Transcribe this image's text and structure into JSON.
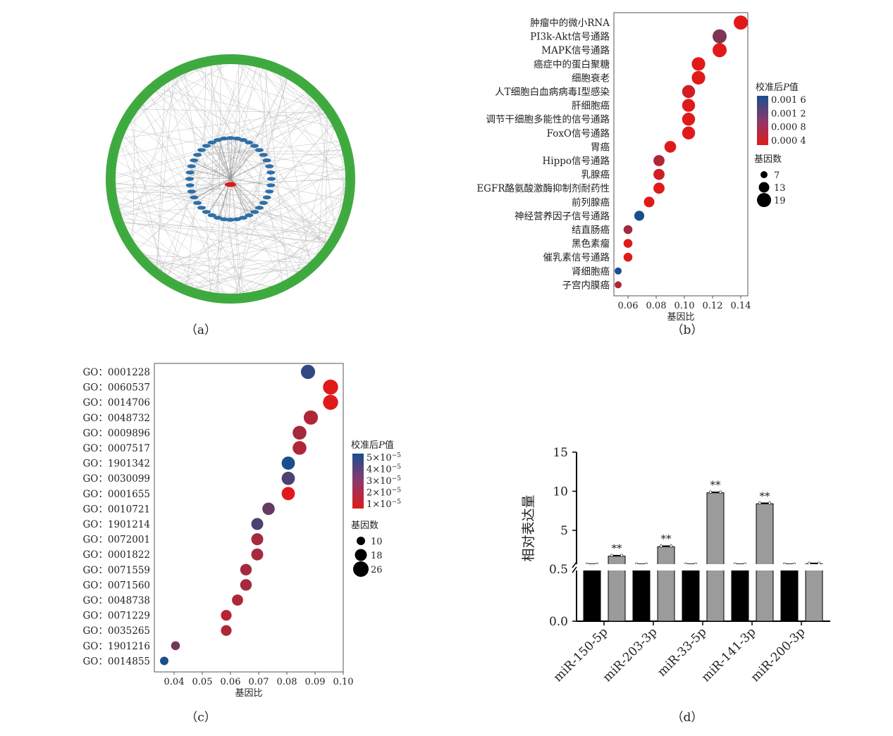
{
  "panel_labels": [
    "（a）",
    "（b）",
    "（c）",
    "（d）"
  ],
  "colors": {
    "high_p": "#1a4e8f",
    "low_p": "#e01a1a",
    "network_outer": "#3faa3f",
    "network_mid": "#2f6fa7",
    "network_center": "#d81b1b",
    "bar_control": "#000000",
    "bar_treated": "#9b9b9b"
  },
  "chart_data": [
    {
      "type": "network",
      "panel": "a",
      "description": "miRNA-target gene interaction network",
      "layers": [
        "outer ring (targets)",
        "inner ring",
        "center node"
      ]
    },
    {
      "type": "scatter",
      "panel": "b",
      "xlabel": "基因比",
      "xlim": [
        0.05,
        0.145
      ],
      "xticks": [
        "0.06",
        "0.08",
        "0.10",
        "0.12",
        "0.14"
      ],
      "categories": [
        "肿瘤中的微小RNA",
        "PI3k-Akt信号通路",
        "MAPK信号通路",
        "癌症中的蛋白聚糖",
        "细胞衰老",
        "人T细胞白血病病毒Ⅰ型感染",
        "肝细胞癌",
        "调节干细胞多能性的信号通路",
        "FoxO信号通路",
        "胃癌",
        "Hippo信号通路",
        "乳腺癌",
        "EGFR酪氨酸激酶抑制剂耐药性",
        "前列腺癌",
        "神经营养因子信号通路",
        "结直肠癌",
        "黑色素瘤",
        "催乳素信号通路",
        "肾细胞癌",
        "子宫内膜癌"
      ],
      "x": [
        0.14,
        0.125,
        0.125,
        0.11,
        0.11,
        0.103,
        0.103,
        0.103,
        0.103,
        0.09,
        0.082,
        0.082,
        0.082,
        0.075,
        0.068,
        0.06,
        0.06,
        0.06,
        0.053,
        0.053
      ],
      "count": [
        19,
        19,
        19,
        18,
        18,
        17,
        17,
        17,
        17,
        15,
        14,
        14,
        14,
        13,
        12,
        10,
        10,
        10,
        7,
        7
      ],
      "padj": [
        0.0002,
        0.001,
        0.0003,
        0.0002,
        0.0002,
        0.0005,
        0.0003,
        0.0003,
        0.0003,
        0.0002,
        0.0007,
        0.0005,
        0.0004,
        0.0004,
        0.0016,
        0.0008,
        0.0004,
        0.0003,
        0.0016,
        0.0007
      ],
      "colorbar": {
        "title": "校准后P值",
        "ticks": [
          "0.001 6",
          "0.001 2",
          "0.000 8",
          "0.000 4"
        ],
        "values": [
          0.0016,
          0.0012,
          0.0008,
          0.0004
        ]
      },
      "sizelegend": {
        "title": "基因数",
        "labels": [
          "7",
          "13",
          "19"
        ],
        "values": [
          7,
          13,
          19
        ]
      }
    },
    {
      "type": "scatter",
      "panel": "c",
      "xlabel": "基因比",
      "xlim": [
        0.033,
        0.1
      ],
      "xticks": [
        "0.04",
        "0.05",
        "0.06",
        "0.07",
        "0.08",
        "0.09",
        "0.10"
      ],
      "categories": [
        "GO：0001228",
        "GO：0060537",
        "GO：0014706",
        "GO：0048732",
        "GO：0009896",
        "GO：0007517",
        "GO：1901342",
        "GO：0030099",
        "GO：0001655",
        "GO：0010721",
        "GO：1901214",
        "GO：0072001",
        "GO：0001822",
        "GO：0071559",
        "GO：0071560",
        "GO：0048738",
        "GO：0071229",
        "GO：0035265",
        "GO：1901216",
        "GO：0014855"
      ],
      "x": [
        0.0875,
        0.0955,
        0.0955,
        0.0885,
        0.0845,
        0.0845,
        0.0805,
        0.0805,
        0.0805,
        0.0735,
        0.0695,
        0.0695,
        0.0695,
        0.0655,
        0.0655,
        0.0625,
        0.0585,
        0.0585,
        0.0405,
        0.0365
      ],
      "count": [
        23,
        25,
        25,
        23,
        22,
        22,
        21,
        21,
        21,
        19,
        18,
        18,
        18,
        17,
        17,
        16,
        15,
        15,
        11,
        10
      ],
      "padj": [
        4.5e-05,
        5e-06,
        5e-06,
        2e-05,
        2.2e-05,
        2e-05,
        5e-05,
        4e-05,
        6e-06,
        3.5e-05,
        4e-05,
        2.2e-05,
        2.2e-05,
        2.2e-05,
        2.2e-05,
        2e-05,
        1.8e-05,
        2e-05,
        3.2e-05,
        5e-05
      ],
      "colorbar": {
        "title": "校准后P值",
        "ticks": [
          "5×10",
          "4×10",
          "3×10",
          "2×10",
          "1×10"
        ],
        "exponent": "−5",
        "values": [
          5e-05,
          4e-05,
          3e-05,
          2e-05,
          1e-05
        ]
      },
      "sizelegend": {
        "title": "基因数",
        "labels": [
          "10",
          "18",
          "26"
        ],
        "values": [
          10,
          18,
          26
        ]
      }
    },
    {
      "type": "bar",
      "panel": "d",
      "ylabel": "相对表达量",
      "yticks": [
        "0.0",
        "0.5",
        "5",
        "10",
        "15"
      ],
      "categories": [
        "miR-150-5p",
        "miR-203-3p",
        "miR-33-5p",
        "miR-141-3p",
        "miR-200-3p"
      ],
      "series": [
        {
          "values": [
            1.0,
            1.0,
            1.0,
            1.0,
            1.0
          ]
        },
        {
          "values": [
            2.0,
            3.1,
            9.8,
            8.4,
            1.1
          ]
        }
      ],
      "significance": [
        "**",
        "**",
        "**",
        "**",
        ""
      ]
    }
  ]
}
